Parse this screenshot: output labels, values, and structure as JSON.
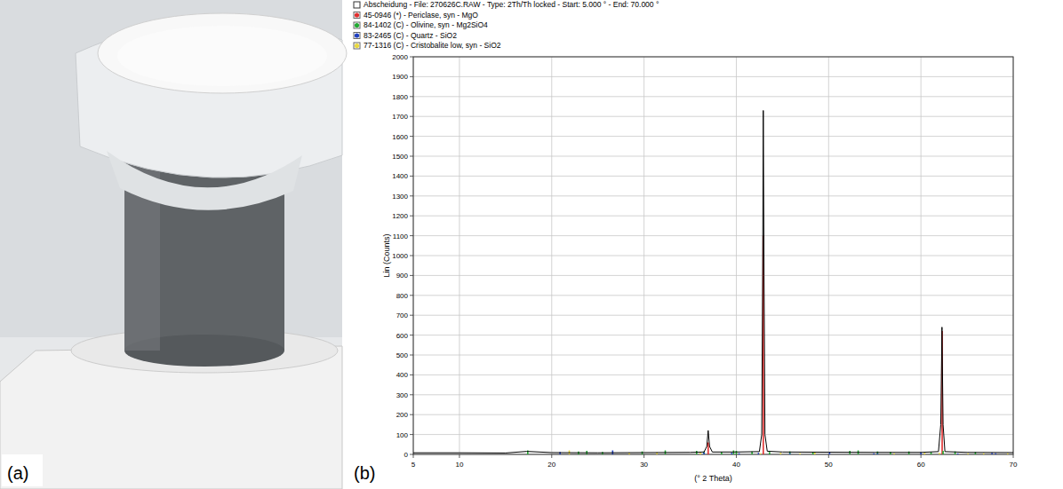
{
  "photo": {
    "label": "(a)"
  },
  "chart_data": {
    "type": "line",
    "panel_label": "(b)",
    "title": "Abscheidung - File: 270626C.RAW - Type: 2Th/Th locked - Start: 5.000 ° - End: 70.000 °",
    "x_label": "(° 2 Theta)",
    "y_label": "Lin (Counts)",
    "xlim": [
      5,
      70
    ],
    "xticks": [
      5,
      10,
      20,
      30,
      40,
      50,
      60,
      70
    ],
    "ylim": [
      0,
      2000
    ],
    "yticks": [
      0,
      100,
      200,
      300,
      400,
      500,
      600,
      700,
      800,
      900,
      1000,
      1100,
      1200,
      1300,
      1400,
      1500,
      1600,
      1700,
      1800,
      1900,
      2000
    ],
    "grid": true,
    "legend": "top-left",
    "series": [
      {
        "name": "Abscheidung",
        "type": "line",
        "color": "#000000",
        "x": [
          5,
          10,
          15,
          17.3,
          20,
          25,
          30,
          35,
          36.5,
          36.8,
          36.95,
          37.1,
          37.4,
          40,
          42.5,
          42.75,
          42.85,
          42.92,
          43.0,
          43.1,
          43.35,
          45,
          50,
          55,
          60,
          61.9,
          62.15,
          62.28,
          62.4,
          62.6,
          65,
          70
        ],
        "values": [
          8,
          8,
          7,
          15,
          9,
          8,
          9,
          10,
          12,
          40,
          120,
          40,
          12,
          12,
          14,
          100,
          900,
          1730,
          900,
          100,
          16,
          12,
          11,
          10,
          10,
          14,
          150,
          640,
          150,
          14,
          10,
          9
        ]
      },
      {
        "name": "45-0946 (*) - Periclase, syn - MgO",
        "type": "bar",
        "color": "#e03030",
        "x": [
          36.95,
          42.92,
          62.3
        ],
        "values": [
          60,
          1100,
          620
        ]
      },
      {
        "name": "84-1402 (C) - Olivine, syn - Mg2SiO4",
        "type": "bar",
        "color": "#22aa33",
        "x": [
          17.4,
          22.9,
          23.8,
          25.5,
          29.8,
          32.3,
          35.7,
          36.5,
          38.4,
          39.7,
          40.0,
          41.7,
          43.6,
          45.8,
          48.3,
          52.3,
          53.2,
          55.3,
          56.7,
          58.7,
          61.1,
          62.4,
          63.7,
          65.9
        ],
        "values": [
          20,
          15,
          18,
          12,
          15,
          20,
          18,
          15,
          12,
          20,
          18,
          15,
          12,
          15,
          12,
          18,
          20,
          15,
          12,
          15,
          12,
          18,
          15,
          12
        ]
      },
      {
        "name": "83-2465 (C) - Quartz - SiO2",
        "type": "bar",
        "color": "#2040c0",
        "x": [
          20.9,
          26.6,
          36.5,
          39.5,
          40.3,
          42.4,
          45.8,
          50.1,
          54.9,
          55.3,
          60.0,
          64.0,
          67.7,
          68.1
        ],
        "values": [
          12,
          20,
          10,
          8,
          6,
          8,
          6,
          12,
          6,
          5,
          10,
          5,
          8,
          6
        ]
      },
      {
        "name": "77-1316 (C) - Cristobalite low, syn - SiO2",
        "type": "bar",
        "color": "#e8d840",
        "x": [
          21.9,
          28.4,
          31.4,
          36.1,
          42.6,
          44.8,
          46.9,
          48.5,
          57.1,
          60.4,
          62.0,
          65.1,
          66.8,
          69.4
        ],
        "values": [
          20,
          8,
          10,
          12,
          6,
          8,
          6,
          10,
          6,
          8,
          8,
          6,
          6,
          6
        ]
      }
    ]
  }
}
